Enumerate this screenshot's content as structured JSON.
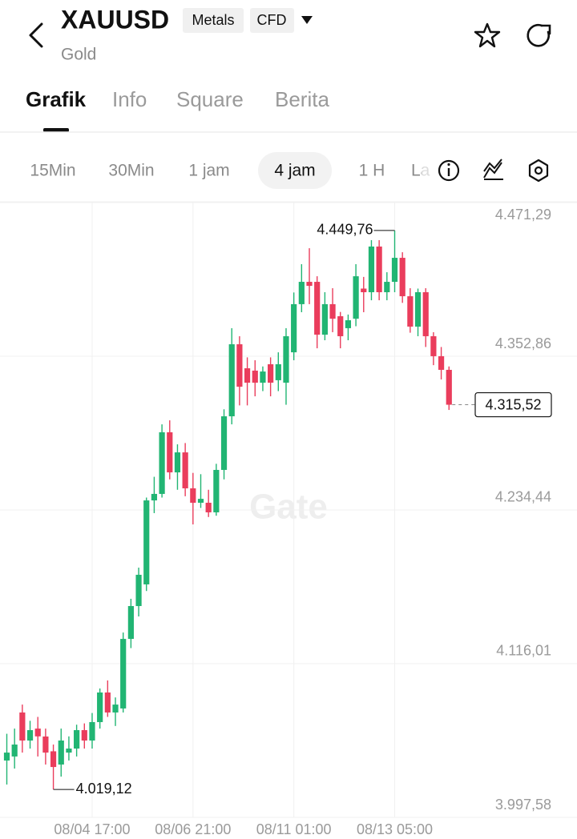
{
  "header": {
    "symbol": "XAUUSD",
    "tags": [
      "Metals",
      "CFD"
    ],
    "name": "Gold"
  },
  "tabs": {
    "items": [
      "Grafik",
      "Info",
      "Square",
      "Berita"
    ],
    "active": 0
  },
  "intervals": {
    "items": [
      "15Min",
      "30Min",
      "1 jam",
      "4 jam",
      "1 H",
      "La"
    ],
    "active": 3
  },
  "chart_data": {
    "type": "candlestick",
    "watermark": "Gate",
    "categories": [
      null,
      null,
      null,
      null,
      null,
      null,
      null,
      null,
      null,
      null,
      null,
      "08/04 17:00",
      null,
      null,
      null,
      null,
      null,
      null,
      null,
      null,
      null,
      null,
      null,
      null,
      "08/06 21:00",
      null,
      null,
      null,
      null,
      null,
      null,
      null,
      null,
      null,
      null,
      null,
      null,
      "08/11 01:00",
      null,
      null,
      null,
      null,
      null,
      null,
      null,
      null,
      null,
      null,
      null,
      null,
      "08/13 05:00",
      null,
      null,
      null,
      null,
      null,
      null,
      null
    ],
    "open": [
      4041.4,
      4044.5,
      4078.4,
      4056.8,
      4066,
      4059.9,
      4048.5,
      4038.3,
      4047.5,
      4050.6,
      4064.8,
      4056.8,
      4071.0,
      4093.8,
      4078.4,
      4081.5,
      4135.1,
      4160.4,
      4177.1,
      4241.8,
      4246.8,
      4294.3,
      4263.4,
      4278.8,
      4251.1,
      4240.0,
      4240.0,
      4232.6,
      4265.3,
      4306.6,
      4362.1,
      4343.6,
      4341.8,
      4332.5,
      4346.7,
      4334.4,
      4332.5,
      4355.9,
      4393,
      4410.2,
      4410.2,
      4369.5,
      4393,
      4383.7,
      4374.5,
      4381.8,
      4405,
      4402.2,
      4437.4,
      4402.2,
      4410.2,
      4428.7,
      4399.1,
      4375.7,
      4402.2,
      4368.3,
      4352.9,
      4342.4
    ],
    "high": [
      4062,
      4066,
      4084.5,
      4072,
      4075,
      4066,
      4053.7,
      4066,
      4060,
      4069,
      4070,
      4078,
      4096.9,
      4103.1,
      4090,
      4140,
      4166,
      4190,
      4244,
      4260,
      4300.4,
      4303.5,
      4285,
      4286,
      4263,
      4262,
      4250,
      4270,
      4312,
      4374.5,
      4368.3,
      4352,
      4349.8,
      4345,
      4352,
      4355.9,
      4374.5,
      4402,
      4423.8,
      4436.1,
      4414.5,
      4402.2,
      4405.3,
      4387,
      4385,
      4423.8,
      4414,
      4442.3,
      4442.3,
      4417.6,
      4449.76,
      4433,
      4405.3,
      4405,
      4405.3,
      4371.4,
      4360,
      4345
    ],
    "low": [
      4022.9,
      4035.2,
      4047.5,
      4050.6,
      4044.5,
      4038.3,
      4019.12,
      4029,
      4041.4,
      4044.5,
      4050.6,
      4050.6,
      4066,
      4075,
      4068,
      4078.4,
      4128,
      4152.4,
      4172,
      4232,
      4244,
      4258,
      4250,
      4245,
      4223.3,
      4236,
      4229,
      4230,
      4258,
      4300.4,
      4315,
      4315,
      4322,
      4326,
      4322,
      4326,
      4315.5,
      4349.8,
      4386.8,
      4393,
      4359,
      4365.2,
      4371.4,
      4359,
      4365.2,
      4376,
      4386.8,
      4396,
      4396,
      4396,
      4402.2,
      4394,
      4371,
      4368.3,
      4360,
      4346,
      4335,
      4311.5
    ],
    "close": [
      4047.5,
      4053.7,
      4056.8,
      4064.8,
      4060,
      4047.5,
      4036.4,
      4056.8,
      4050.6,
      4064.8,
      4056.8,
      4071.0,
      4093.8,
      4078.4,
      4084.5,
      4135.1,
      4160.4,
      4184.5,
      4241.8,
      4246.8,
      4294.3,
      4263.4,
      4278.8,
      4251.1,
      4240.0,
      4243,
      4232.6,
      4265.3,
      4306.6,
      4362.1,
      4329.4,
      4332.5,
      4332.5,
      4341.1,
      4332.5,
      4346.7,
      4368.3,
      4393,
      4410.2,
      4407.1,
      4369.5,
      4393,
      4381.8,
      4368.3,
      4380.6,
      4414.5,
      4402.2,
      4437.4,
      4402.2,
      4410.2,
      4428.7,
      4399.1,
      4375.7,
      4402.2,
      4368.3,
      4352.9,
      4342.4,
      4315.52
    ],
    "up_color": "#21b573",
    "down_color": "#ea3d5c",
    "ylim": [
      3997.58,
      4471.29
    ],
    "yticks": [
      {
        "value": 3997.58,
        "label": "3.997,58"
      },
      {
        "value": 4116.01,
        "label": "4.116,01"
      },
      {
        "value": 4234.44,
        "label": "4.234,44"
      },
      {
        "value": 4352.86,
        "label": "4.352,86"
      },
      {
        "value": 4471.29,
        "label": "4.471,29"
      }
    ],
    "grid": true,
    "high_marker": {
      "value": 4449.76,
      "label": "4.449,76"
    },
    "low_marker": {
      "value": 4019.12,
      "label": "4.019,12"
    },
    "last_price": {
      "value": 4315.52,
      "label": "4.315,52"
    }
  }
}
